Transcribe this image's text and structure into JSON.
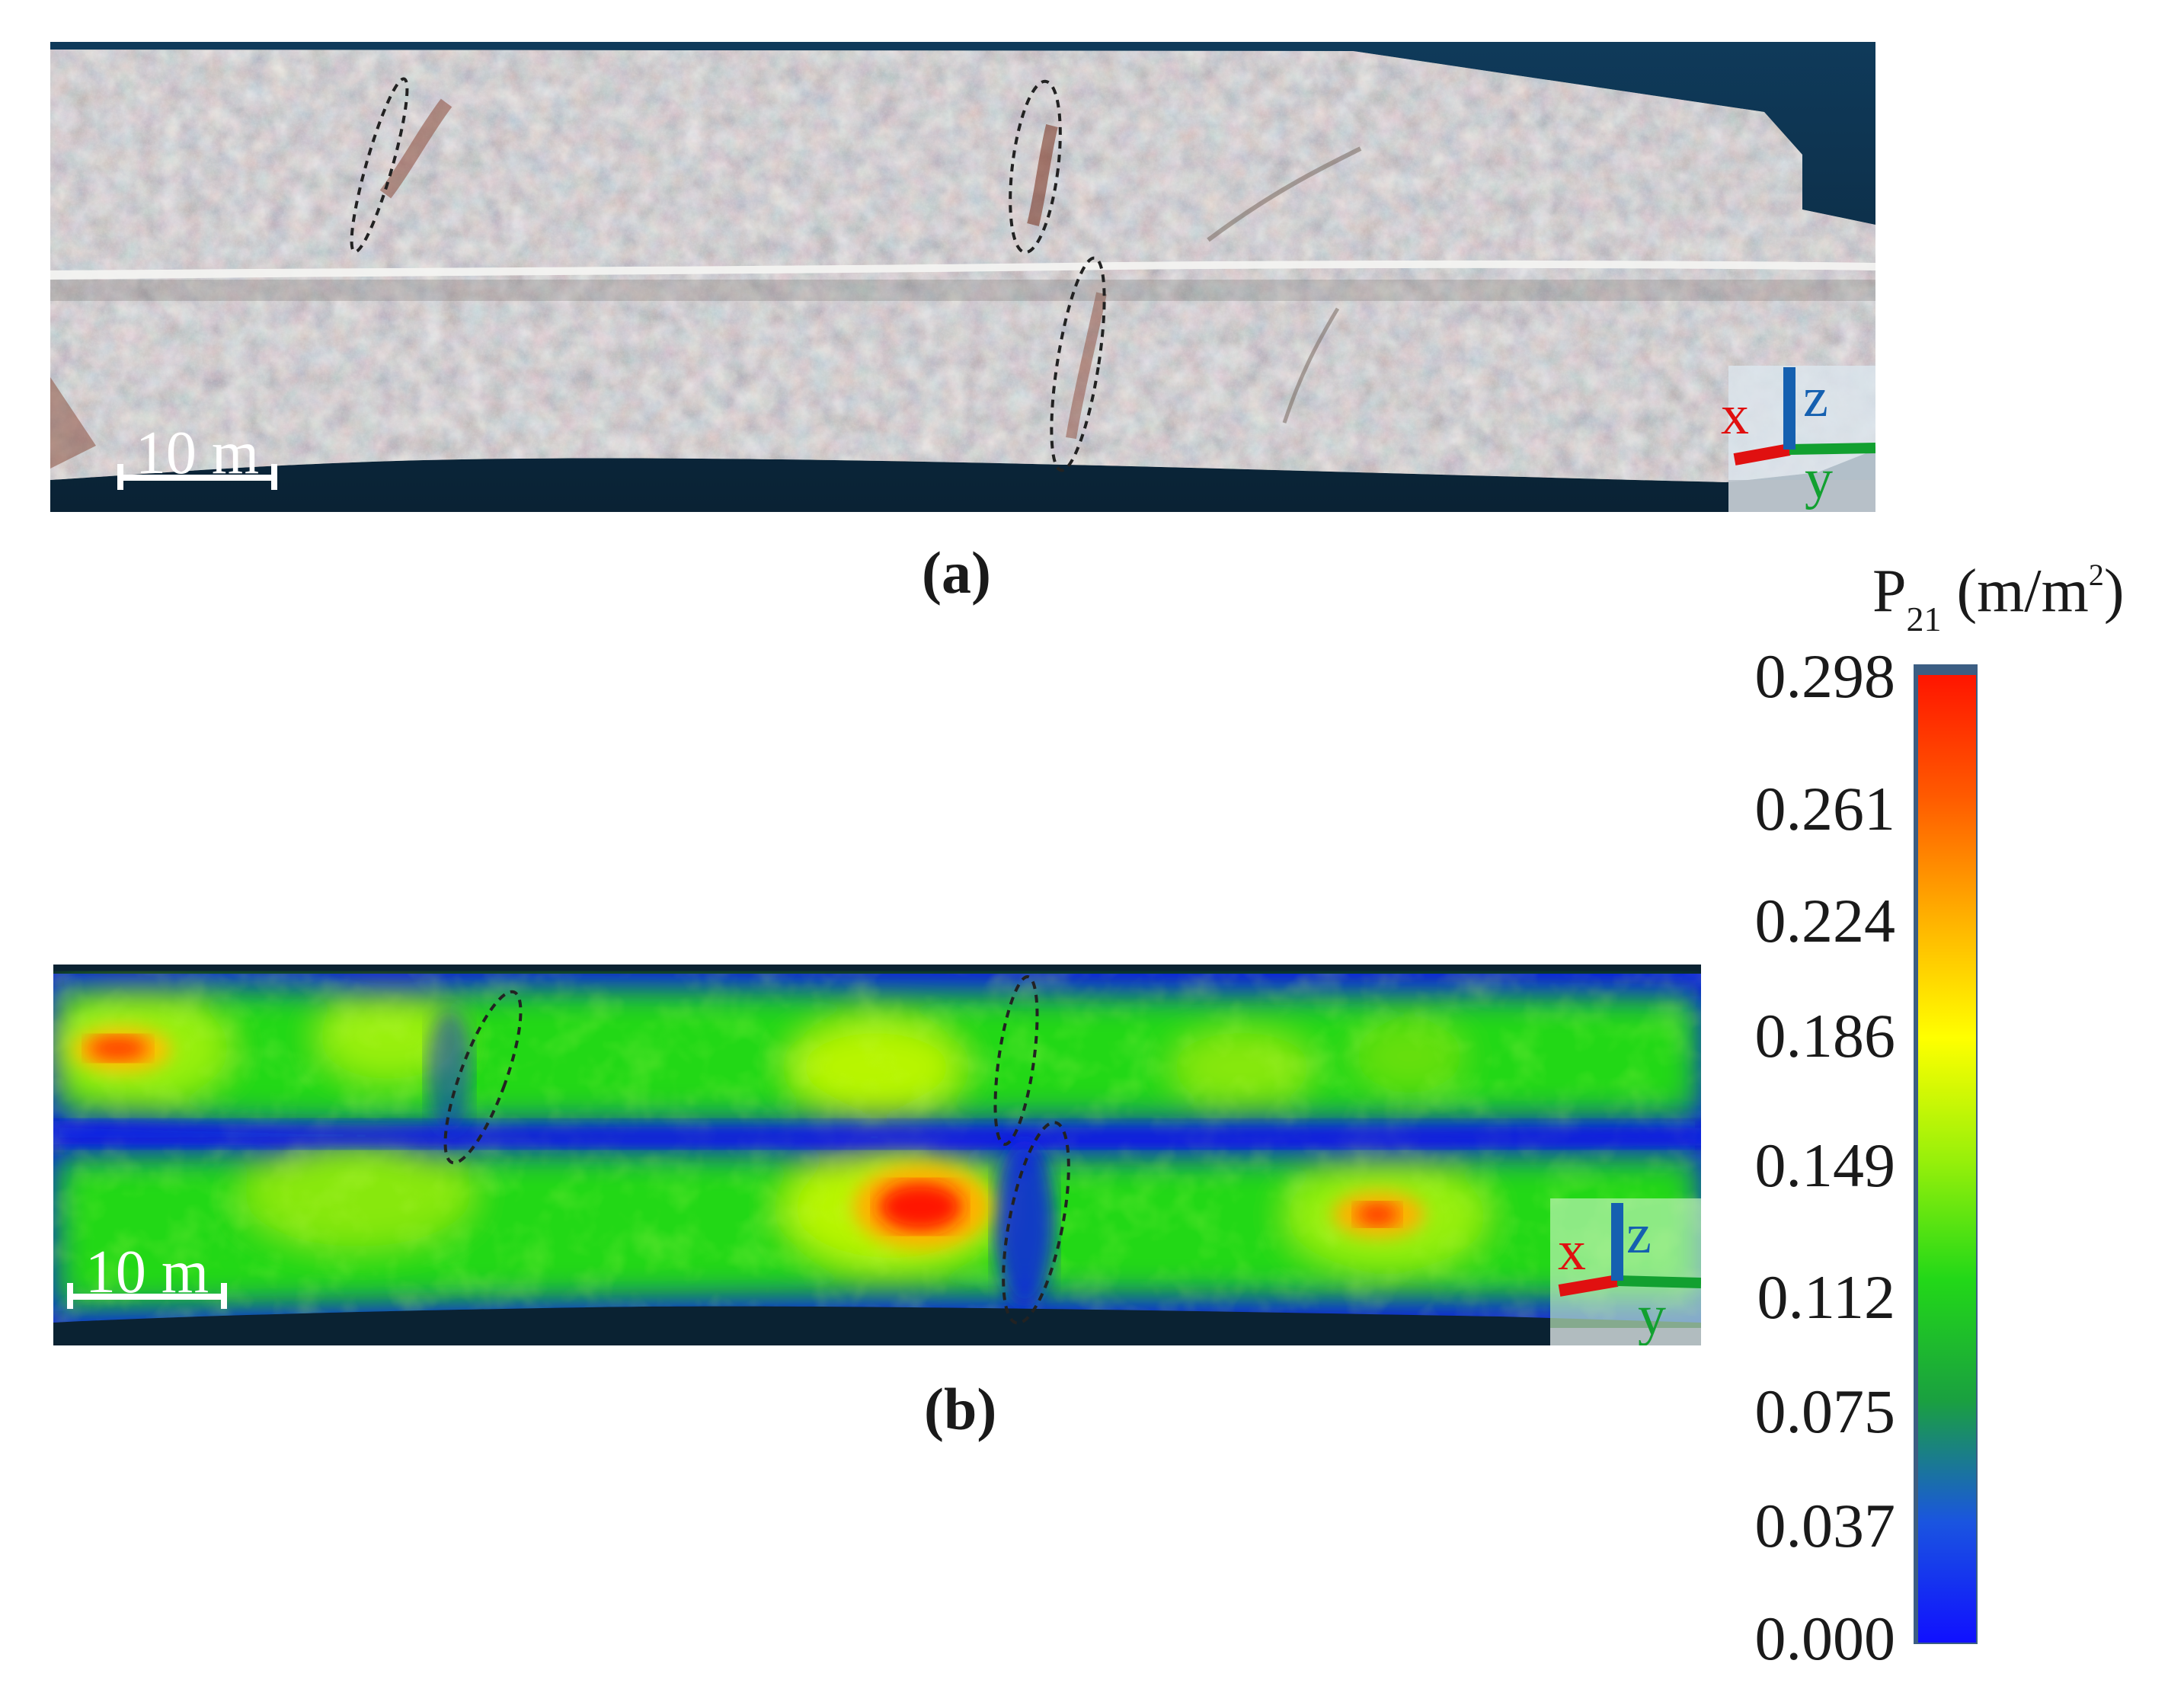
{
  "panels": [
    {
      "id": "a",
      "caption": "(a)",
      "content": "rock-face-photograph",
      "scale_bar": "10 m",
      "axes": {
        "x": "x",
        "y": "y",
        "z": "z"
      },
      "ellipse_count": 3
    },
    {
      "id": "b",
      "caption": "(b)",
      "content": "p21-intensity-map",
      "scale_bar": "10 m",
      "axes": {
        "x": "x",
        "y": "y",
        "z": "z"
      },
      "ellipse_count": 3
    }
  ],
  "colorbar": {
    "title_main": "P",
    "title_sub": "21",
    "title_unit": "(m/m",
    "title_sup": "2",
    "title_close": ")",
    "ticks": [
      "0.298",
      "0.261",
      "0.224",
      "0.186",
      "0.149",
      "0.112",
      "0.075",
      "0.037",
      "0.000"
    ],
    "min": 0.0,
    "max": 0.298,
    "colors": [
      "#1010ff",
      "#1a55e0",
      "#1aa040",
      "#22d818",
      "#99f00a",
      "#ffff00",
      "#ffb000",
      "#ff5a00",
      "#ff1500"
    ]
  },
  "colors": {
    "background_dark": "#0f2f4a",
    "axis_x": "#e01010",
    "axis_y": "#12a030",
    "axis_z": "#1560b0",
    "ellipse": "#222222",
    "scale_bar": "#ffffff"
  }
}
